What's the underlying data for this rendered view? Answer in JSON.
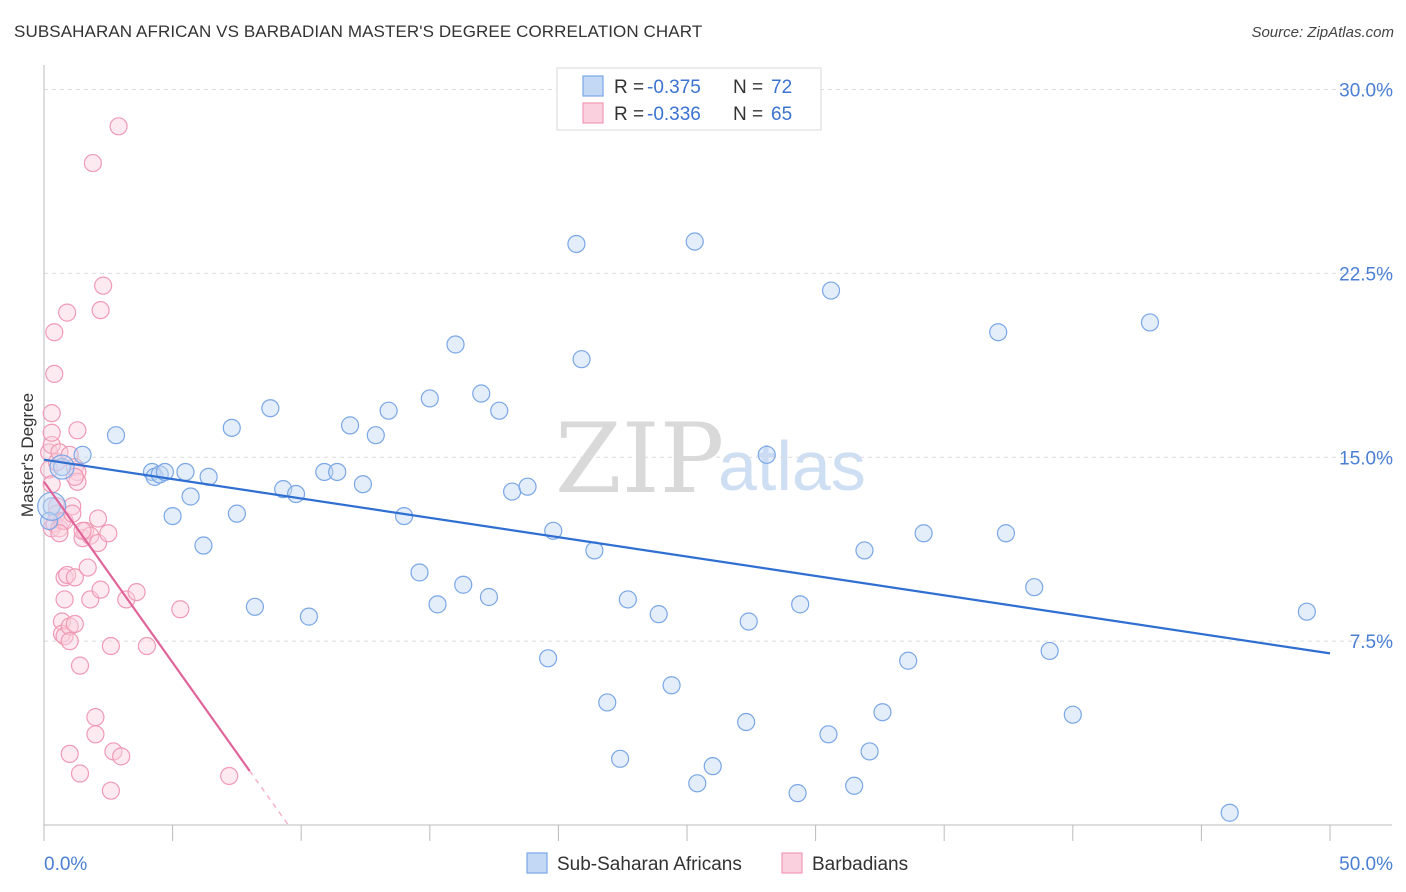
{
  "title": "SUBSAHARAN AFRICAN VS BARBADIAN MASTER'S DEGREE CORRELATION CHART",
  "source": "Source: ZipAtlas.com",
  "watermark": {
    "zip": "ZIP",
    "atlas": "atlas"
  },
  "legend": {
    "r_label": "R =",
    "n_label": "N =",
    "rows": [
      {
        "r": "-0.375",
        "n": "72"
      },
      {
        "r": "-0.336",
        "n": "65"
      }
    ]
  },
  "bottom_legend": [
    "Sub-Saharan Africans",
    "Barbadians"
  ],
  "chart_data": {
    "type": "scatter",
    "title": "SUBSAHARAN AFRICAN VS BARBADIAN MASTER'S DEGREE CORRELATION CHART",
    "xlabel": "",
    "ylabel": "Master's Degree",
    "xlim": [
      0,
      50
    ],
    "ylim": [
      0,
      31
    ],
    "x_tick_labels": [
      "0.0%",
      "50.0%"
    ],
    "y_ticks": [
      7.5,
      15.0,
      22.5,
      30.0
    ],
    "y_tick_labels": [
      "7.5%",
      "15.0%",
      "22.5%",
      "30.0%"
    ],
    "colors": {
      "blue": "#7aa7e6",
      "pink": "#f09ab5",
      "blue_line": "#2f6fd1",
      "pink_line": "#e0649a"
    },
    "series": [
      {
        "name": "Sub-Saharan Africans",
        "color": "#7aa7e6",
        "r": -0.375,
        "n": 72,
        "trend": {
          "x0": 0.0,
          "y0": 14.9,
          "x1": 50.0,
          "y1": 7.0
        },
        "points": [
          [
            0.3,
            13.0
          ],
          [
            0.7,
            14.6
          ],
          [
            1.5,
            15.1
          ],
          [
            2.8,
            15.9
          ],
          [
            4.2,
            14.4
          ],
          [
            4.3,
            14.2
          ],
          [
            4.5,
            14.3
          ],
          [
            4.7,
            14.4
          ],
          [
            5.0,
            12.6
          ],
          [
            5.5,
            14.4
          ],
          [
            5.7,
            13.4
          ],
          [
            6.2,
            11.4
          ],
          [
            6.4,
            14.2
          ],
          [
            7.3,
            16.2
          ],
          [
            7.5,
            12.7
          ],
          [
            8.2,
            8.9
          ],
          [
            8.8,
            17.0
          ],
          [
            9.3,
            13.7
          ],
          [
            9.8,
            13.5
          ],
          [
            10.3,
            8.5
          ],
          [
            10.9,
            14.4
          ],
          [
            11.4,
            14.4
          ],
          [
            11.9,
            16.3
          ],
          [
            12.4,
            13.9
          ],
          [
            12.9,
            15.9
          ],
          [
            13.4,
            16.9
          ],
          [
            14.0,
            12.6
          ],
          [
            14.6,
            10.3
          ],
          [
            15.0,
            17.4
          ],
          [
            15.3,
            9.0
          ],
          [
            16.0,
            19.6
          ],
          [
            16.3,
            9.8
          ],
          [
            17.0,
            17.6
          ],
          [
            17.3,
            9.3
          ],
          [
            17.7,
            16.9
          ],
          [
            18.2,
            13.6
          ],
          [
            18.8,
            13.8
          ],
          [
            19.6,
            6.8
          ],
          [
            19.8,
            12.0
          ],
          [
            20.7,
            23.7
          ],
          [
            20.9,
            19.0
          ],
          [
            21.4,
            11.2
          ],
          [
            21.9,
            5.0
          ],
          [
            22.4,
            2.7
          ],
          [
            22.7,
            9.2
          ],
          [
            23.9,
            8.6
          ],
          [
            24.4,
            5.7
          ],
          [
            25.3,
            23.8
          ],
          [
            25.4,
            1.7
          ],
          [
            26.0,
            2.4
          ],
          [
            27.3,
            4.2
          ],
          [
            27.4,
            8.3
          ],
          [
            28.1,
            15.1
          ],
          [
            29.3,
            1.3
          ],
          [
            29.4,
            9.0
          ],
          [
            30.5,
            3.7
          ],
          [
            30.6,
            21.8
          ],
          [
            31.5,
            1.6
          ],
          [
            31.9,
            11.2
          ],
          [
            32.1,
            3.0
          ],
          [
            32.6,
            4.6
          ],
          [
            33.6,
            6.7
          ],
          [
            34.2,
            11.9
          ],
          [
            37.1,
            20.1
          ],
          [
            37.4,
            11.9
          ],
          [
            38.5,
            9.7
          ],
          [
            39.1,
            7.1
          ],
          [
            40.0,
            4.5
          ],
          [
            43.0,
            20.5
          ],
          [
            46.1,
            0.5
          ],
          [
            49.1,
            8.7
          ],
          [
            0.2,
            12.4
          ]
        ]
      },
      {
        "name": "Barbadians",
        "color": "#f09ab5",
        "r": -0.336,
        "n": 65,
        "trend": {
          "x0": 0.0,
          "y0": 14.0,
          "x1": 8.0,
          "y1": 2.2,
          "dash_to_x": 9.5,
          "dash_to_y": 0.0
        },
        "points": [
          [
            0.2,
            15.2
          ],
          [
            0.2,
            14.5
          ],
          [
            0.3,
            13.9
          ],
          [
            0.3,
            15.5
          ],
          [
            0.3,
            16.0
          ],
          [
            0.3,
            16.8
          ],
          [
            0.3,
            12.1
          ],
          [
            0.4,
            20.1
          ],
          [
            0.4,
            18.4
          ],
          [
            0.4,
            12.3
          ],
          [
            0.5,
            13.0
          ],
          [
            0.5,
            12.7
          ],
          [
            0.5,
            14.8
          ],
          [
            0.6,
            12.1
          ],
          [
            0.6,
            15.2
          ],
          [
            0.7,
            12.4
          ],
          [
            0.7,
            8.3
          ],
          [
            0.7,
            7.8
          ],
          [
            0.8,
            12.4
          ],
          [
            0.8,
            9.2
          ],
          [
            0.8,
            10.1
          ],
          [
            0.8,
            7.7
          ],
          [
            0.9,
            10.2
          ],
          [
            0.9,
            20.9
          ],
          [
            1.0,
            15.1
          ],
          [
            1.0,
            8.1
          ],
          [
            1.0,
            7.5
          ],
          [
            1.0,
            2.9
          ],
          [
            1.1,
            13.0
          ],
          [
            1.1,
            12.7
          ],
          [
            1.2,
            14.6
          ],
          [
            1.2,
            10.1
          ],
          [
            1.2,
            8.2
          ],
          [
            1.3,
            14.4
          ],
          [
            1.3,
            14.0
          ],
          [
            1.3,
            16.1
          ],
          [
            1.4,
            6.5
          ],
          [
            1.4,
            2.1
          ],
          [
            1.5,
            11.7
          ],
          [
            1.6,
            12.0
          ],
          [
            1.7,
            10.5
          ],
          [
            1.8,
            11.8
          ],
          [
            1.8,
            9.2
          ],
          [
            1.9,
            27.0
          ],
          [
            2.0,
            4.4
          ],
          [
            2.0,
            3.7
          ],
          [
            2.1,
            11.5
          ],
          [
            2.1,
            12.5
          ],
          [
            2.2,
            9.6
          ],
          [
            2.2,
            21.0
          ],
          [
            2.3,
            22.0
          ],
          [
            2.6,
            7.3
          ],
          [
            2.6,
            1.4
          ],
          [
            2.7,
            3.0
          ],
          [
            2.9,
            28.5
          ],
          [
            3.0,
            2.8
          ],
          [
            3.2,
            9.2
          ],
          [
            3.6,
            9.5
          ],
          [
            4.0,
            7.3
          ],
          [
            5.3,
            8.8
          ],
          [
            7.2,
            2.0
          ],
          [
            1.5,
            12.0
          ],
          [
            0.6,
            11.9
          ],
          [
            1.2,
            14.2
          ],
          [
            2.5,
            11.9
          ]
        ]
      }
    ]
  }
}
